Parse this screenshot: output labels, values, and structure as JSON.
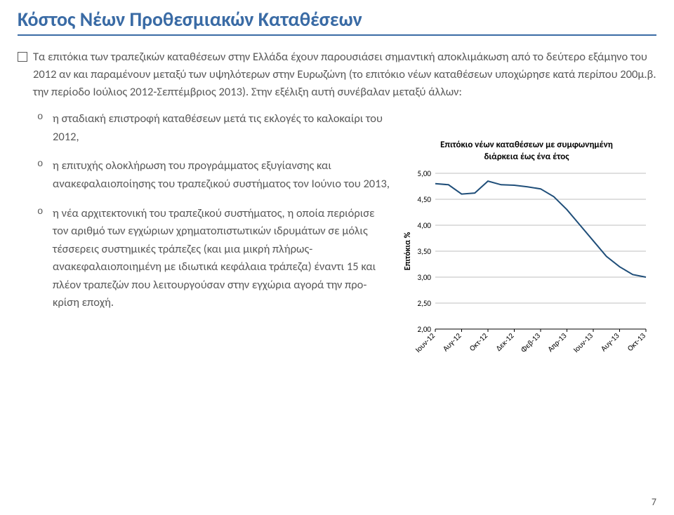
{
  "title": "Κόστος Νέων Προθεσμιακών Καταθέσεων",
  "intro": "Τα επιτόκια των τραπεζικών καταθέσεων στην Ελλάδα έχουν παρουσιάσει σημαντική αποκλιμάκωση από το δεύτερο εξάμηνο του 2012 αν και παραμένουν μεταξύ των υψηλότερων στην Ευρωζώνη (το επιτόκιο νέων καταθέσεων υποχώρησε κατά περίπου 200μ.β. την περίοδο Ιούλιος 2012-Σεπτέμβριος 2013). Στην εξέλιξη αυτή συνέβαλαν μεταξύ άλλων:",
  "bullets": [
    "η σταδιακή επιστροφή καταθέσεων μετά τις εκλογές το καλοκαίρι του 2012,",
    "η επιτυχής ολοκλήρωση του προγράμματος εξυγίανσης και ανακεφαλαιοποίησης του τραπεζικού συστήματος τον Ιούνιο του 2013,",
    "η νέα αρχιτεκτονική του τραπεζικού συστήματος, η οποία περιόρισε τον αριθμό των εγχώριων χρηματοπιστωτικών ιδρυμάτων σε μόλις τέσσερεις συστημικές τράπεζες (και μια μικρή πλήρως-ανακεφαλαιοποιημένη με ιδιωτικά κεφάλαια τράπεζα) έναντι 15 και πλέον τραπεζών που λειτουργούσαν στην εγχώρια αγορά την προ-κρίση εποχή."
  ],
  "chart": {
    "type": "line",
    "title_line1": "Επιτόκιο νέων καταθέσεων με συμφωνημένη",
    "title_line2": "διάρκεια έως ένα έτος",
    "ylabel": "Επιτόκια %",
    "yticks": [
      2.0,
      2.5,
      3.0,
      3.5,
      4.0,
      4.5,
      5.0
    ],
    "ytick_labels": [
      "2,00",
      "2,50",
      "3,00",
      "3,50",
      "4,00",
      "4,50",
      "5,00"
    ],
    "ylim": [
      2.0,
      5.0
    ],
    "x_labels": [
      "Ιουν-12",
      "Αυγ-12",
      "Οκτ-12",
      "Δεκ-12",
      "Φεβ-13",
      "Απρ-13",
      "Ιουν-13",
      "Αυγ-13",
      "Οκτ-13"
    ],
    "series": {
      "color": "#1f4e79",
      "line_width": 2.0,
      "points": [
        {
          "x": 0,
          "y": 4.8
        },
        {
          "x": 1,
          "y": 4.78
        },
        {
          "x": 2,
          "y": 4.6
        },
        {
          "x": 3,
          "y": 4.62
        },
        {
          "x": 4,
          "y": 4.85
        },
        {
          "x": 5,
          "y": 4.78
        },
        {
          "x": 6,
          "y": 4.77
        },
        {
          "x": 7,
          "y": 4.74
        },
        {
          "x": 8,
          "y": 4.7
        },
        {
          "x": 9,
          "y": 4.55
        },
        {
          "x": 10,
          "y": 4.3
        },
        {
          "x": 11,
          "y": 4.0
        },
        {
          "x": 12,
          "y": 3.7
        },
        {
          "x": 13,
          "y": 3.4
        },
        {
          "x": 14,
          "y": 3.2
        },
        {
          "x": 15,
          "y": 3.05
        },
        {
          "x": 16,
          "y": 3.0
        }
      ]
    },
    "grid_color": "#bfbfbf",
    "plot_bg": "#ffffff",
    "axis_font_size": 11,
    "title_font_size": 13
  },
  "page_number": "7"
}
